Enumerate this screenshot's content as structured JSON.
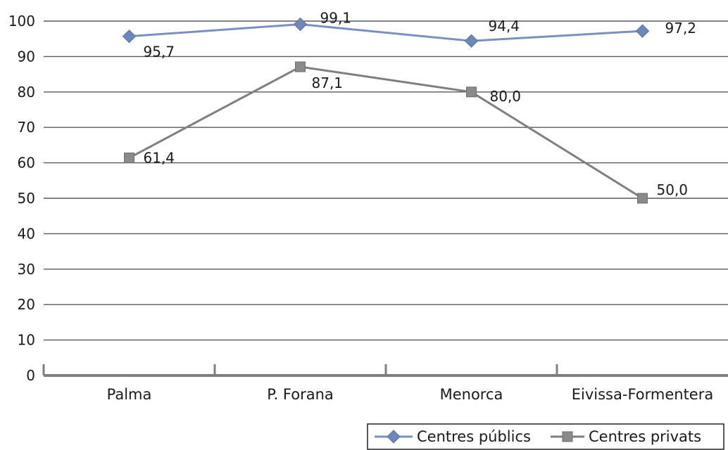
{
  "chart_data": {
    "type": "line",
    "categories": [
      "Palma",
      "P. Forana",
      "Menorca",
      "Eivissa-Formentera"
    ],
    "series": [
      {
        "name": "Centres públics",
        "values": [
          95.7,
          99.1,
          94.4,
          97.2
        ],
        "labels": [
          "95,7",
          "99,1",
          "94,4",
          "97,2"
        ],
        "color": "#6f86b8",
        "line_color": "#7a8fc4",
        "marker": "diamond"
      },
      {
        "name": "Centres privats",
        "values": [
          61.4,
          87.1,
          80.0,
          50.0
        ],
        "labels": [
          "61,4",
          "87,1",
          "80,0",
          "50,0"
        ],
        "color": "#8a8a8a",
        "line_color": "#7f7f7f",
        "marker": "square"
      }
    ],
    "ylim": [
      0,
      100
    ],
    "yticks": [
      0,
      10,
      20,
      30,
      40,
      50,
      60,
      70,
      80,
      90,
      100
    ],
    "grid": true,
    "legend_position": "bottom-right",
    "title": "",
    "xlabel": "",
    "ylabel": ""
  }
}
